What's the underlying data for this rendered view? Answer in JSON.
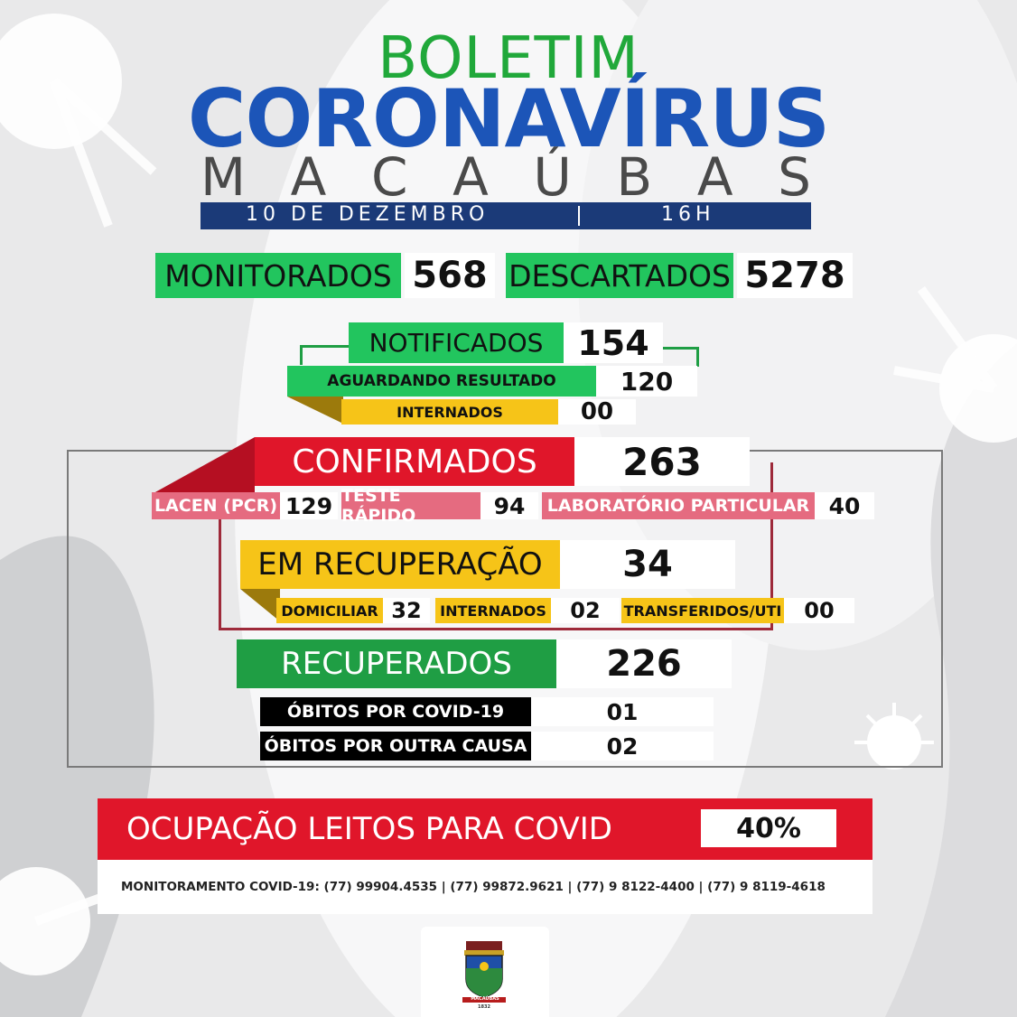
{
  "header": {
    "line1": "BOLETIM",
    "line2": "CORONAVÍRUS",
    "city_letters": [
      "M",
      "A",
      "C",
      "A",
      "Ú",
      "B",
      "A",
      "S"
    ],
    "date": "10 DE DEZEMBRO",
    "time": "16H"
  },
  "monitorados": {
    "label": "MONITORADOS",
    "value": "568"
  },
  "descartados": {
    "label": "DESCARTADOS",
    "value": "5278"
  },
  "notificados": {
    "label": "NOTIFICADOS",
    "value": "154"
  },
  "aguardando": {
    "label": "AGUARDANDO RESULTADO",
    "value": "120"
  },
  "internados_notif": {
    "label": "INTERNADOS",
    "value": "00"
  },
  "confirmados": {
    "label": "CONFIRMADOS",
    "value": "263"
  },
  "lacen": {
    "label": "LACEN (PCR)",
    "value": "129"
  },
  "teste_rapido": {
    "label": "TESTE RÁPIDO",
    "value": "94"
  },
  "laboratorio": {
    "label": "LABORATÓRIO PARTICULAR",
    "value": "40"
  },
  "em_recuperacao": {
    "label": "EM RECUPERAÇÃO",
    "value": "34"
  },
  "domiciliar": {
    "label": "DOMICILIAR",
    "value": "32"
  },
  "internados_rec": {
    "label": "INTERNADOS",
    "value": "02"
  },
  "transferidos": {
    "label": "TRANSFERIDOS/UTI",
    "value": "00"
  },
  "recuperados": {
    "label": "RECUPERADOS",
    "value": "226"
  },
  "obitos_covid": {
    "label": "ÓBITOS POR COVID-19",
    "value": "01"
  },
  "obitos_outra": {
    "label": "ÓBITOS POR OUTRA CAUSA",
    "value": "02"
  },
  "ocupacao": {
    "label": "OCUPAÇÃO LEITOS PARA COVID",
    "value": "40%"
  },
  "footer": {
    "contacts": "MONITORAMENTO COVID-19: (77) 99904.4535 | (77) 99872.9621 | (77) 9 8122-4400 | (77) 9 8119-4618"
  },
  "crest": {
    "icon": "municipal-coat-of-arms-icon",
    "label": "MACAÚBAS",
    "year": "1832"
  },
  "colors": {
    "green": "#22c55e",
    "blue": "#1c55b8",
    "navy": "#1b3a78",
    "red": "#e0162a",
    "pink": "#e56b80",
    "yellow": "#f6c418",
    "dark_green": "#1f9e44"
  }
}
